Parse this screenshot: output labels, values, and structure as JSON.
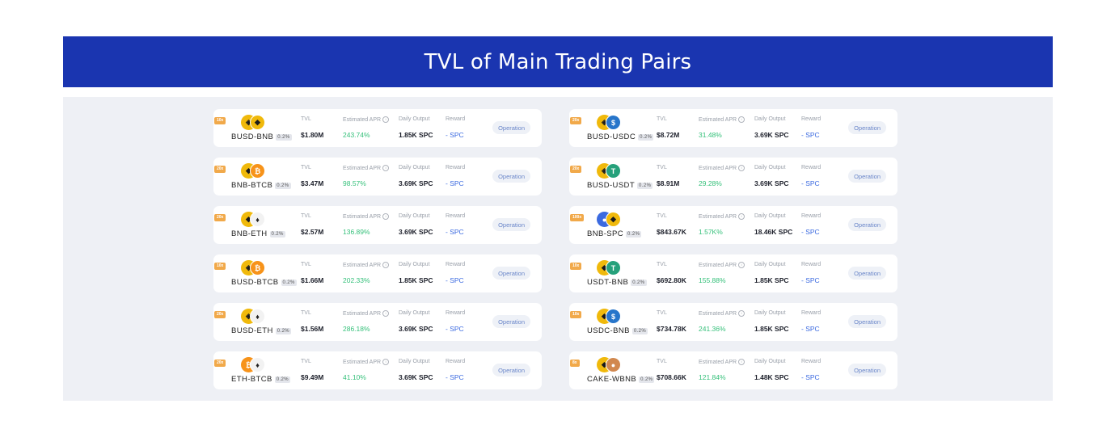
{
  "banner": {
    "title": "TVL of Main Trading Pairs"
  },
  "labels": {
    "tvl": "TVL",
    "apr": "Estimated APR",
    "daily": "Daily Output",
    "reward": "Reward",
    "operation": "Operation"
  },
  "pairs_left": [
    {
      "multiplier": "10x",
      "name": "BUSD-BNB",
      "fee": "0.2%",
      "tvl": "$1.80M",
      "apr": "243.74%",
      "daily": "1.85K SPC",
      "reward": "- SPC",
      "coin1": {
        "bg": "#f0b90b",
        "fg": "#1a1a1a",
        "glyph": "◈"
      },
      "coin2": {
        "bg": "#f0b90b",
        "fg": "#1a1a1a",
        "glyph": "◆"
      }
    },
    {
      "multiplier": "20x",
      "name": "BNB-BTCB",
      "fee": "0.2%",
      "tvl": "$3.47M",
      "apr": "98.57%",
      "daily": "3.69K SPC",
      "reward": "- SPC",
      "coin1": {
        "bg": "#f0b90b",
        "fg": "#1a1a1a",
        "glyph": "◆"
      },
      "coin2": {
        "bg": "#f7931a",
        "fg": "#ffffff",
        "glyph": "₿"
      }
    },
    {
      "multiplier": "20x",
      "name": "BNB-ETH",
      "fee": "0.2%",
      "tvl": "$2.57M",
      "apr": "136.89%",
      "daily": "3.69K SPC",
      "reward": "- SPC",
      "coin1": {
        "bg": "#f0b90b",
        "fg": "#1a1a1a",
        "glyph": "◆"
      },
      "coin2": {
        "bg": "#f2f2f2",
        "fg": "#222222",
        "glyph": "♦"
      }
    },
    {
      "multiplier": "10x",
      "name": "BUSD-BTCB",
      "fee": "0.2%",
      "tvl": "$1.66M",
      "apr": "202.33%",
      "daily": "1.85K SPC",
      "reward": "- SPC",
      "coin1": {
        "bg": "#f0b90b",
        "fg": "#1a1a1a",
        "glyph": "◈"
      },
      "coin2": {
        "bg": "#f7931a",
        "fg": "#ffffff",
        "glyph": "₿"
      }
    },
    {
      "multiplier": "20x",
      "name": "BUSD-ETH",
      "fee": "0.2%",
      "tvl": "$1.56M",
      "apr": "286.18%",
      "daily": "3.69K SPC",
      "reward": "- SPC",
      "coin1": {
        "bg": "#f0b90b",
        "fg": "#1a1a1a",
        "glyph": "◈"
      },
      "coin2": {
        "bg": "#f2f2f2",
        "fg": "#222222",
        "glyph": "♦"
      }
    },
    {
      "multiplier": "20x",
      "name": "ETH-BTCB",
      "fee": "0.2%",
      "tvl": "$9.49M",
      "apr": "41.10%",
      "daily": "3.69K SPC",
      "reward": "- SPC",
      "coin1": {
        "bg": "#f7931a",
        "fg": "#ffffff",
        "glyph": "₿"
      },
      "coin2": {
        "bg": "#f2f2f2",
        "fg": "#222222",
        "glyph": "♦"
      }
    }
  ],
  "pairs_right": [
    {
      "multiplier": "20x",
      "name": "BUSD-USDC",
      "fee": "0.2%",
      "tvl": "$8.72M",
      "apr": "31.48%",
      "daily": "3.69K SPC",
      "reward": "- SPC",
      "coin1": {
        "bg": "#f0b90b",
        "fg": "#1a1a1a",
        "glyph": "◈"
      },
      "coin2": {
        "bg": "#2775ca",
        "fg": "#ffffff",
        "glyph": "$"
      }
    },
    {
      "multiplier": "20x",
      "name": "BUSD-USDT",
      "fee": "0.2%",
      "tvl": "$8.91M",
      "apr": "29.28%",
      "daily": "3.69K SPC",
      "reward": "- SPC",
      "coin1": {
        "bg": "#f0b90b",
        "fg": "#1a1a1a",
        "glyph": "◈"
      },
      "coin2": {
        "bg": "#26a17b",
        "fg": "#ffffff",
        "glyph": "T"
      }
    },
    {
      "multiplier": "100x",
      "name": "BNB-SPC",
      "fee": "0.2%",
      "tvl": "$843.67K",
      "apr": "1.57K%",
      "daily": "18.46K SPC",
      "reward": "- SPC",
      "coin1": {
        "bg": "#3b6ae0",
        "fg": "#ffffff",
        "glyph": "●"
      },
      "coin2": {
        "bg": "#f0b90b",
        "fg": "#1a1a1a",
        "glyph": "◆"
      }
    },
    {
      "multiplier": "10x",
      "name": "USDT-BNB",
      "fee": "0.2%",
      "tvl": "$692.80K",
      "apr": "155.88%",
      "daily": "1.85K SPC",
      "reward": "- SPC",
      "coin1": {
        "bg": "#f0b90b",
        "fg": "#1a1a1a",
        "glyph": "◆"
      },
      "coin2": {
        "bg": "#26a17b",
        "fg": "#ffffff",
        "glyph": "T"
      }
    },
    {
      "multiplier": "10x",
      "name": "USDC-BNB",
      "fee": "0.2%",
      "tvl": "$734.78K",
      "apr": "241.36%",
      "daily": "1.85K SPC",
      "reward": "- SPC",
      "coin1": {
        "bg": "#f0b90b",
        "fg": "#1a1a1a",
        "glyph": "◆"
      },
      "coin2": {
        "bg": "#2775ca",
        "fg": "#ffffff",
        "glyph": "$"
      }
    },
    {
      "multiplier": "8x",
      "name": "CAKE-WBNB",
      "fee": "0.2%",
      "tvl": "$708.66K",
      "apr": "121.84%",
      "daily": "1.48K SPC",
      "reward": "- SPC",
      "coin1": {
        "bg": "#f0b90b",
        "fg": "#1a1a1a",
        "glyph": "◆"
      },
      "coin2": {
        "bg": "#d1884f",
        "fg": "#ffffff",
        "glyph": "●"
      }
    }
  ]
}
